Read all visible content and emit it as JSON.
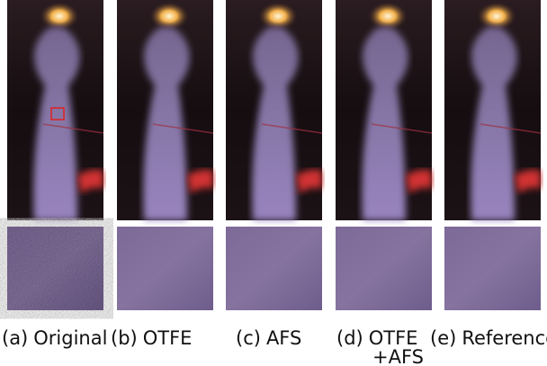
{
  "panels": [
    {
      "label": "(a)",
      "name": [
        "Original"
      ]
    },
    {
      "label": "(b)",
      "name": [
        "OTFE"
      ]
    },
    {
      "label": "(c)",
      "name": [
        "AFS"
      ]
    },
    {
      "label": "(d)",
      "name": [
        "OTFE",
        "+AFS"
      ]
    },
    {
      "label": "(e)",
      "name": [
        "Reference"
      ]
    }
  ]
}
